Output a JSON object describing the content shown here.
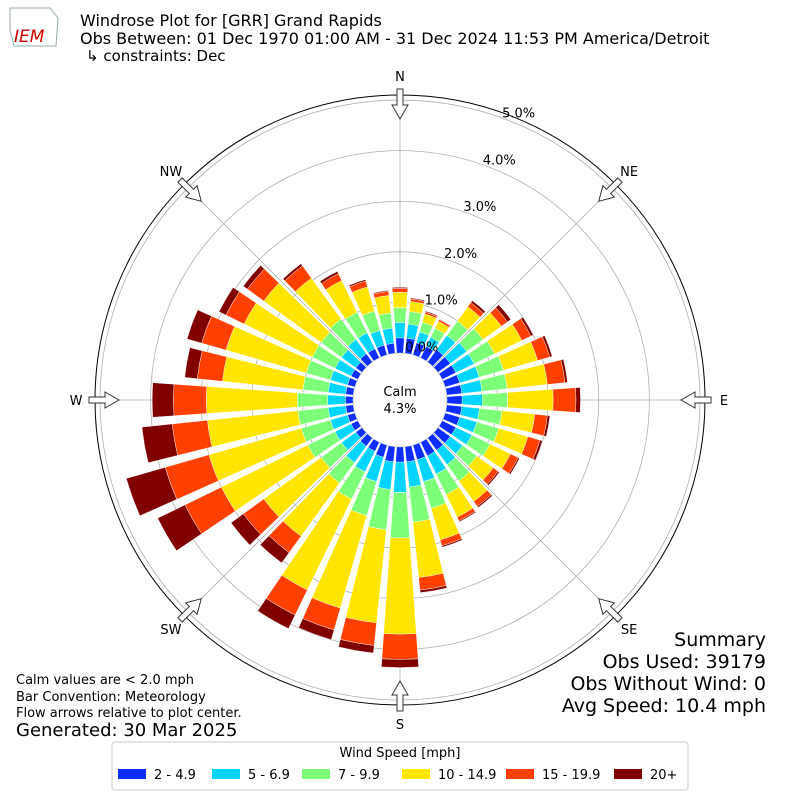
{
  "chart_data": {
    "type": "windrose",
    "logo": "IEM",
    "title": "Windrose Plot for [GRR] Grand Rapids",
    "subtitle": "Obs Between: 01 Dec 1970 01:00 AM - 31 Dec 2024 11:53 PM America/Detroit",
    "constraints": "↳ constraints: Dec",
    "x": [
      0,
      10,
      20,
      30,
      40,
      50,
      60,
      70,
      80,
      90,
      100,
      110,
      120,
      130,
      140,
      150,
      160,
      170,
      180,
      190,
      200,
      210,
      220,
      230,
      240,
      250,
      260,
      270,
      280,
      290,
      300,
      310,
      320,
      330,
      340,
      350
    ],
    "xticks": [
      {
        "value": 0,
        "label": "N"
      },
      {
        "value": 45,
        "label": "NE"
      },
      {
        "value": 90,
        "label": "E"
      },
      {
        "value": 135,
        "label": "SE"
      },
      {
        "value": 180,
        "label": "S"
      },
      {
        "value": 225,
        "label": "SW"
      },
      {
        "value": 270,
        "label": "W"
      },
      {
        "value": 315,
        "label": "NW"
      }
    ],
    "ylim": [
      0,
      5.1
    ],
    "yticks": [
      {
        "value": 0,
        "label": "0.0%"
      },
      {
        "value": 1,
        "label": "1.0%"
      },
      {
        "value": 2,
        "label": "2.0%"
      },
      {
        "value": 3,
        "label": "3.0%"
      },
      {
        "value": 4,
        "label": "4.0%"
      },
      {
        "value": 5,
        "label": "5.0%"
      }
    ],
    "grid": true,
    "calm": {
      "label": "Calm",
      "value": 4.3,
      "value_label": "4.3%"
    },
    "legend_title": "Wind Speed [mph]",
    "series": [
      {
        "name": "2 - 4.9",
        "color": "#0d2eff",
        "values": [
          0.3,
          0.3,
          0.25,
          0.25,
          0.3,
          0.3,
          0.3,
          0.3,
          0.3,
          0.3,
          0.3,
          0.3,
          0.3,
          0.3,
          0.3,
          0.3,
          0.3,
          0.3,
          0.3,
          0.3,
          0.25,
          0.2,
          0.2,
          0.15,
          0.15,
          0.15,
          0.15,
          0.15,
          0.15,
          0.15,
          0.15,
          0.15,
          0.2,
          0.2,
          0.2,
          0.2
        ]
      },
      {
        "name": "5 - 6.9",
        "color": "#00d4ff",
        "values": [
          0.3,
          0.28,
          0.22,
          0.2,
          0.35,
          0.4,
          0.4,
          0.4,
          0.4,
          0.4,
          0.35,
          0.35,
          0.35,
          0.3,
          0.35,
          0.4,
          0.45,
          0.5,
          0.6,
          0.55,
          0.5,
          0.45,
          0.4,
          0.35,
          0.35,
          0.35,
          0.35,
          0.35,
          0.35,
          0.35,
          0.35,
          0.35,
          0.35,
          0.35,
          0.3,
          0.3
        ]
      },
      {
        "name": "7 - 9.9",
        "color": "#7dff7a",
        "values": [
          0.3,
          0.25,
          0.2,
          0.2,
          0.35,
          0.4,
          0.45,
          0.5,
          0.5,
          0.5,
          0.45,
          0.45,
          0.4,
          0.35,
          0.4,
          0.45,
          0.55,
          0.7,
          0.9,
          0.8,
          0.7,
          0.6,
          0.5,
          0.5,
          0.6,
          0.6,
          0.6,
          0.6,
          0.5,
          0.5,
          0.5,
          0.5,
          0.5,
          0.45,
          0.4,
          0.3
        ]
      },
      {
        "name": "10 - 14.9",
        "color": "#ffe500",
        "values": [
          0.3,
          0.2,
          0.17,
          0.15,
          0.35,
          0.45,
          0.6,
          0.7,
          0.8,
          0.9,
          0.65,
          0.6,
          0.45,
          0.4,
          0.5,
          0.5,
          0.65,
          1.1,
          1.9,
          1.85,
          1.9,
          2.0,
          1.3,
          1.4,
          1.9,
          1.9,
          1.8,
          1.8,
          1.6,
          1.65,
          1.5,
          1.4,
          1.0,
          0.7,
          0.5,
          0.35
        ]
      },
      {
        "name": "15 - 19.9",
        "color": "#ff4000",
        "values": [
          0.08,
          0.05,
          0.04,
          0.04,
          0.1,
          0.15,
          0.2,
          0.25,
          0.35,
          0.45,
          0.25,
          0.25,
          0.17,
          0.12,
          0.12,
          0.08,
          0.12,
          0.25,
          0.5,
          0.45,
          0.45,
          0.55,
          0.4,
          0.5,
          0.8,
          0.9,
          0.7,
          0.65,
          0.5,
          0.5,
          0.4,
          0.4,
          0.3,
          0.15,
          0.12,
          0.08
        ]
      },
      {
        "name": "20+",
        "color": "#800000",
        "values": [
          0.02,
          0.02,
          0.02,
          0.01,
          0.05,
          0.08,
          0.05,
          0.05,
          0.05,
          0.09,
          0.05,
          0.05,
          0.03,
          0.03,
          0.03,
          0.02,
          0.03,
          0.05,
          0.16,
          0.15,
          0.2,
          0.3,
          0.25,
          0.3,
          0.6,
          0.8,
          0.6,
          0.42,
          0.25,
          0.3,
          0.15,
          0.1,
          0.05,
          0.05,
          0.03,
          0.02
        ]
      }
    ],
    "summary": [
      "Summary",
      "Obs Used: 39179",
      "Obs Without Wind: 0",
      "Avg Speed: 10.4 mph"
    ],
    "notes": [
      "Calm values are < 2.0 mph",
      "Bar Convention: Meteorology",
      "Flow arrows relative to plot center."
    ],
    "generated": "Generated: 30 Mar 2025"
  }
}
